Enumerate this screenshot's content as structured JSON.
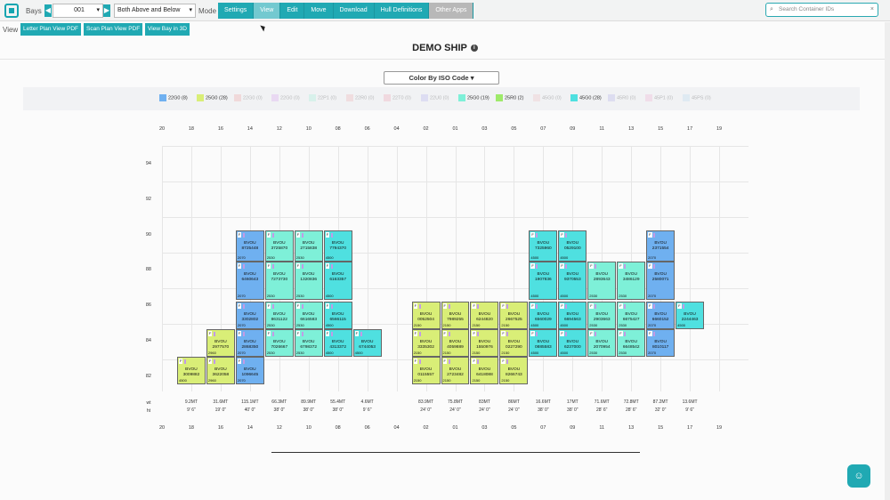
{
  "topbar": {
    "bays_label": "Bays",
    "bay_value": "001",
    "filter_value": "Both Above and Below",
    "mode_label": "Mode",
    "nav": [
      "Settings",
      "View",
      "Edit",
      "Move",
      "Download",
      "Hull Definitions",
      "Other Apps"
    ],
    "search_placeholder": "Search Container IDs"
  },
  "viewbar": {
    "view_label": "View",
    "buttons": [
      "Letter Plan View PDF",
      "Scan Plan View PDF",
      "View Bay in 3D"
    ]
  },
  "title": "DEMO SHIP",
  "color_by": "Color By ISO Code",
  "legend": [
    {
      "label": "22G0 (8)",
      "color": "#6fb0f0",
      "active": true
    },
    {
      "label": "25G0 (28)",
      "color": "#d9ee77",
      "active": true
    },
    {
      "label": "22G0 (0)",
      "color": "#f0a0a0",
      "active": false
    },
    {
      "label": "22G0 (0)",
      "color": "#d9a0f0",
      "active": false
    },
    {
      "label": "22P1 (0)",
      "color": "#a0f0d9",
      "active": false
    },
    {
      "label": "22R0 (0)",
      "color": "#f0b0b0",
      "active": false
    },
    {
      "label": "22T0 (0)",
      "color": "#f0a0b0",
      "active": false
    },
    {
      "label": "22U0 (0)",
      "color": "#b0b0f0",
      "active": false
    },
    {
      "label": "25G0 (19)",
      "color": "#7ef0d8",
      "active": true
    },
    {
      "label": "25R0 (2)",
      "color": "#9eea6a",
      "active": true
    },
    {
      "label": "45G0 (0)",
      "color": "#f0c0c0",
      "active": false
    },
    {
      "label": "45G0 (28)",
      "color": "#4fe0e0",
      "active": true
    },
    {
      "label": "45R0 (0)",
      "color": "#b0b0e8",
      "active": false
    },
    {
      "label": "45P1 (0)",
      "color": "#f0b0d0",
      "active": false
    },
    {
      "label": "45PS (0)",
      "color": "#b8d8f0",
      "active": false
    }
  ],
  "bays": [
    "20",
    "18",
    "16",
    "14",
    "12",
    "10",
    "08",
    "06",
    "04",
    "02",
    "01",
    "03",
    "05",
    "07",
    "09",
    "11",
    "13",
    "15",
    "17",
    "19"
  ],
  "rows": [
    "94",
    "92",
    "90",
    "88",
    "86",
    "84",
    "82"
  ],
  "weights": [
    "",
    "9.2MT",
    "31.6MT",
    "115.1MT",
    "66.3MT",
    "89.9MT",
    "55.4MT",
    "4.6MT",
    "",
    "83.9MT",
    "75.8MT",
    "83MT",
    "86MT",
    "16.6MT",
    "17MT",
    "71.6MT",
    "72.8MT",
    "87.2MT",
    "13.6MT",
    ""
  ],
  "heights": [
    "",
    "9' 6\"",
    "19' 0\"",
    "40' 0\"",
    "38' 0\"",
    "38' 0\"",
    "38' 0\"",
    "9' 6\"",
    "",
    "24' 0\"",
    "24' 0\"",
    "24' 0\"",
    "24' 0\"",
    "38' 0\"",
    "38' 0\"",
    "28' 6\"",
    "28' 6\"",
    "32' 0\"",
    "9' 6\"",
    ""
  ],
  "wt_label": "wt",
  "ht_label": "ht",
  "containers": [
    {
      "bay": 3,
      "tier": 0,
      "name": "BVOU 8725448",
      "type": "2070",
      "color": "#6fb0f0"
    },
    {
      "bay": 3,
      "tier": 1,
      "name": "BVOU 6460643",
      "type": "2070",
      "color": "#6fb0f0"
    },
    {
      "bay": 3,
      "tier": 2,
      "name": "BVOU 3302802",
      "type": "2070",
      "color": "#6fb0f0"
    },
    {
      "bay": 3,
      "tier": 3,
      "name": "BVOU 2868350",
      "type": "2070",
      "color": "#6fb0f0"
    },
    {
      "bay": 3,
      "tier": 4,
      "name": "BVOU 1096645",
      "type": "2070",
      "color": "#6fb0f0"
    },
    {
      "bay": 2,
      "tier": 3,
      "name": "BVOU 2977570",
      "type": "2960",
      "color": "#d9ee77"
    },
    {
      "bay": 2,
      "tier": 4,
      "name": "BVOU 3622058",
      "type": "2960",
      "color": "#d9ee77"
    },
    {
      "bay": 1,
      "tier": 4,
      "name": "BVOU 3009882",
      "type": "4500",
      "color": "#d9ee77"
    },
    {
      "bay": 4,
      "tier": 0,
      "name": "BVOU 3725870",
      "type": "2530",
      "color": "#7ef0d8"
    },
    {
      "bay": 4,
      "tier": 1,
      "name": "BVOU 7273730",
      "type": "2530",
      "color": "#7ef0d8"
    },
    {
      "bay": 4,
      "tier": 2,
      "name": "BVOU 8631122",
      "type": "2530",
      "color": "#7ef0d8"
    },
    {
      "bay": 4,
      "tier": 3,
      "name": "BVOU 7026667",
      "type": "2530",
      "color": "#7ef0d8"
    },
    {
      "bay": 5,
      "tier": 0,
      "name": "BVOU 2715838",
      "type": "2530",
      "color": "#7ef0d8"
    },
    {
      "bay": 5,
      "tier": 1,
      "name": "BVOU 1320836",
      "type": "2530",
      "color": "#7ef0d8"
    },
    {
      "bay": 5,
      "tier": 2,
      "name": "BVOU 6616583",
      "type": "2530",
      "color": "#7ef0d8"
    },
    {
      "bay": 5,
      "tier": 3,
      "name": "BVOU 6798372",
      "type": "2530",
      "color": "#7ef0d8"
    },
    {
      "bay": 6,
      "tier": 0,
      "name": "BVOU 7794370",
      "type": "4500",
      "color": "#4fe0e0"
    },
    {
      "bay": 6,
      "tier": 1,
      "name": "BVOU 6163357",
      "type": "4500",
      "color": "#4fe0e0"
    },
    {
      "bay": 6,
      "tier": 2,
      "name": "BVOU 6566115",
      "type": "4500",
      "color": "#4fe0e0"
    },
    {
      "bay": 6,
      "tier": 3,
      "name": "BVOU 4313372",
      "type": "4500",
      "color": "#4fe0e0"
    },
    {
      "bay": 7,
      "tier": 3,
      "name": "BVOU 6744053",
      "type": "4500",
      "color": "#4fe0e0"
    },
    {
      "bay": 9,
      "tier": 2,
      "name": "BVOU 0052504",
      "type": "2150",
      "color": "#d9ee77"
    },
    {
      "bay": 9,
      "tier": 3,
      "name": "BVOU 3335302",
      "type": "2150",
      "color": "#d9ee77"
    },
    {
      "bay": 9,
      "tier": 4,
      "name": "BVOU 0115557",
      "type": "2150",
      "color": "#d9ee77"
    },
    {
      "bay": 10,
      "tier": 2,
      "name": "BVOU 7989255",
      "type": "2150",
      "color": "#d9ee77"
    },
    {
      "bay": 10,
      "tier": 3,
      "name": "BVOU 4059889",
      "type": "2150",
      "color": "#d9ee77"
    },
    {
      "bay": 10,
      "tier": 4,
      "name": "BVOU 2723482",
      "type": "2150",
      "color": "#d9ee77"
    },
    {
      "bay": 11,
      "tier": 2,
      "name": "BVOU 6244820",
      "type": "2150",
      "color": "#d9ee77"
    },
    {
      "bay": 11,
      "tier": 3,
      "name": "BVOU 1550976",
      "type": "2150",
      "color": "#d9ee77"
    },
    {
      "bay": 11,
      "tier": 4,
      "name": "BVOU 6418088",
      "type": "2150",
      "color": "#d9ee77"
    },
    {
      "bay": 12,
      "tier": 2,
      "name": "BVOU 2667525",
      "type": "2150",
      "color": "#d9ee77"
    },
    {
      "bay": 12,
      "tier": 3,
      "name": "BVOU 0227290",
      "type": "2150",
      "color": "#d9ee77"
    },
    {
      "bay": 12,
      "tier": 4,
      "name": "BVOU 8266743",
      "type": "2150",
      "color": "#d9ee77"
    },
    {
      "bay": 13,
      "tier": 0,
      "name": "BVOU 7325960",
      "type": "4500",
      "color": "#4fe0e0"
    },
    {
      "bay": 13,
      "tier": 1,
      "name": "BVOU 1907836",
      "type": "4500",
      "color": "#4fe0e0"
    },
    {
      "bay": 13,
      "tier": 2,
      "name": "BVOU 6560029",
      "type": "4500",
      "color": "#4fe0e0"
    },
    {
      "bay": 13,
      "tier": 3,
      "name": "BVOU 0885583",
      "type": "4500",
      "color": "#4fe0e0"
    },
    {
      "bay": 14,
      "tier": 0,
      "name": "BVOU 0529100",
      "type": "4500",
      "color": "#4fe0e0"
    },
    {
      "bay": 14,
      "tier": 1,
      "name": "BVOU 9370553",
      "type": "4500",
      "color": "#4fe0e0"
    },
    {
      "bay": 14,
      "tier": 2,
      "name": "BVOU 6694563",
      "type": "4500",
      "color": "#4fe0e0"
    },
    {
      "bay": 14,
      "tier": 3,
      "name": "BVOU 6237000",
      "type": "4500",
      "color": "#4fe0e0"
    },
    {
      "bay": 15,
      "tier": 1,
      "name": "BVOU 2893643",
      "type": "2530",
      "color": "#7ef0d8"
    },
    {
      "bay": 15,
      "tier": 2,
      "name": "BVOU 2903663",
      "type": "2530",
      "color": "#7ef0d8"
    },
    {
      "bay": 15,
      "tier": 3,
      "name": "BVOU 2070954",
      "type": "2530",
      "color": "#7ef0d8"
    },
    {
      "bay": 16,
      "tier": 1,
      "name": "BVOU 3486129",
      "type": "2530",
      "color": "#7ef0d8"
    },
    {
      "bay": 16,
      "tier": 2,
      "name": "BVOU 6675427",
      "type": "2530",
      "color": "#7ef0d8"
    },
    {
      "bay": 16,
      "tier": 3,
      "name": "BVOU 6648542",
      "type": "2530",
      "color": "#7ef0d8"
    },
    {
      "bay": 17,
      "tier": 0,
      "name": "BVOU 2371554",
      "type": "2070",
      "color": "#6fb0f0"
    },
    {
      "bay": 17,
      "tier": 1,
      "name": "BVOU 2580071",
      "type": "2070",
      "color": "#6fb0f0"
    },
    {
      "bay": 17,
      "tier": 2,
      "name": "BVOU 6660152",
      "type": "2070",
      "color": "#6fb0f0"
    },
    {
      "bay": 17,
      "tier": 3,
      "name": "BVOU 8010117",
      "type": "2070",
      "color": "#6fb0f0"
    },
    {
      "bay": 18,
      "tier": 2,
      "name": "BVOU 2244463",
      "type": "4500",
      "color": "#4fe0e0"
    }
  ]
}
